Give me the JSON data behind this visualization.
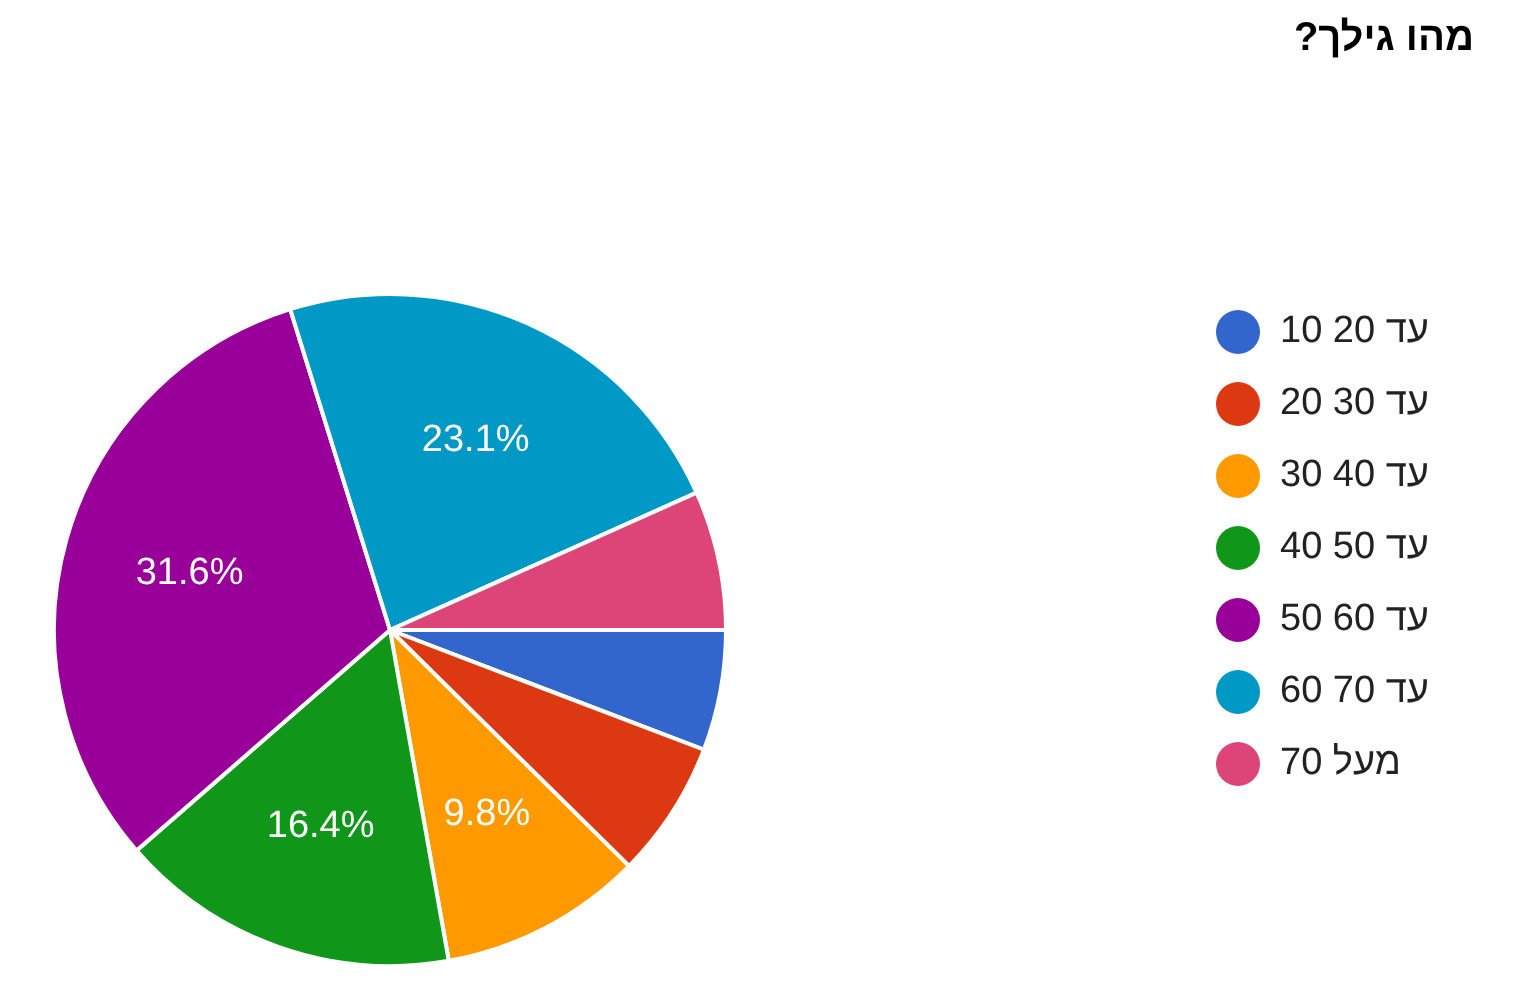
{
  "chart_data": {
    "type": "pie",
    "title": "מהו גילך?",
    "categories": [
      "עד 20 10",
      "עד 30 20",
      "עד 40 30",
      "עד 50 40",
      "עד 60 50",
      "עד 70 60",
      "מעל 70"
    ],
    "values": [
      5.8,
      6.6,
      9.8,
      16.4,
      31.6,
      23.1,
      6.7
    ],
    "colors": [
      "#3366cc",
      "#dc3912",
      "#ff9900",
      "#109618",
      "#990099",
      "#0099c6",
      "#dd4477"
    ],
    "value_labels": [
      null,
      null,
      "9.8%",
      "16.4%",
      "31.6%",
      "23.1%",
      null
    ],
    "legend": "right"
  }
}
